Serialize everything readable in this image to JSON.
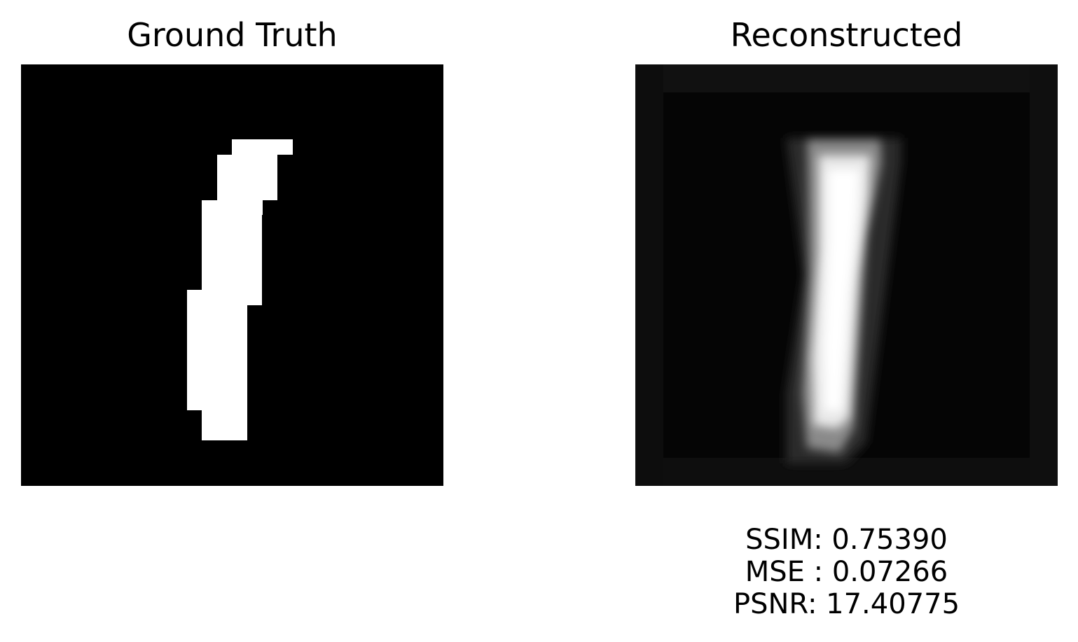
{
  "panels": {
    "ground_truth": {
      "title": "Ground Truth"
    },
    "reconstructed": {
      "title": "Reconstructed"
    }
  },
  "metrics": {
    "ssim": "SSIM: 0.75390",
    "mse": "MSE : 0.07266",
    "psnr": "PSNR: 17.40775"
  },
  "colors": {
    "background": "#ffffff",
    "image_background": "#000000",
    "stroke": "#ffffff"
  }
}
